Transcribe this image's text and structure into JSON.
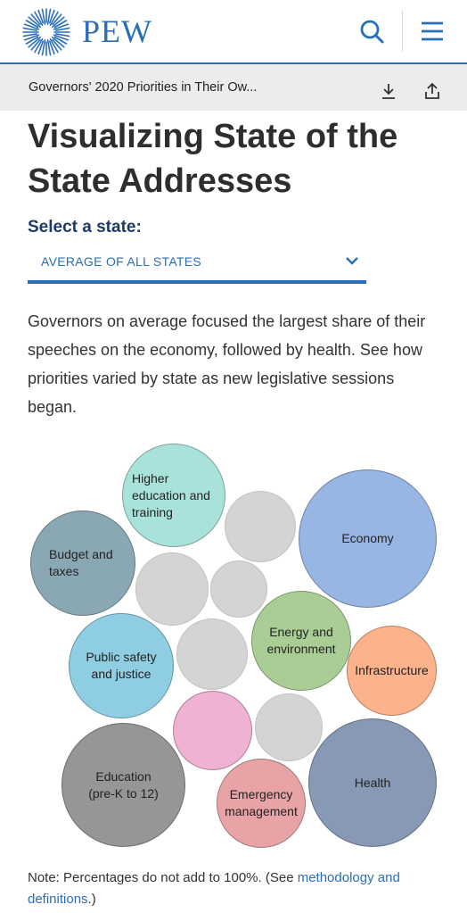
{
  "header": {
    "logo_text": "PEW",
    "logo_icon": "pew-sunburst-logo",
    "search_icon": "search-icon",
    "menu_icon": "hamburger-menu-icon"
  },
  "breadcrumb": {
    "title": "Governors' 2020 Priorities in Their Ow...",
    "download_icon": "download-icon",
    "share_icon": "share-icon"
  },
  "main": {
    "title": "Visualizing State of the State Addresses",
    "select_label": "Select a state:",
    "select_value": "AVERAGE OF ALL STATES",
    "intro": "Governors on average focused the largest share of their speeches on the economy, followed by health. See how priorities varied by state as new legislative sessions began."
  },
  "bubbles": [
    {
      "label": [
        "Higher",
        "education and",
        "training"
      ],
      "color": "#a9e2da"
    },
    {
      "label": [],
      "color": "#d4d4d4"
    },
    {
      "label": [
        "Economy"
      ],
      "color": "#97b6e3"
    },
    {
      "label": [
        "Budget and",
        "taxes"
      ],
      "color": "#8aa8b3"
    },
    {
      "label": [],
      "color": "#d4d4d4"
    },
    {
      "label": [],
      "color": "#d4d4d4"
    },
    {
      "label": [
        "Energy and",
        "environment"
      ],
      "color": "#a9cd95"
    },
    {
      "label": [
        "Public safety",
        "and justice"
      ],
      "color": "#8fcde3"
    },
    {
      "label": [],
      "color": "#d4d4d4"
    },
    {
      "label": [
        "Infrastructure"
      ],
      "color": "#fcb28a"
    },
    {
      "label": [],
      "color": "#f0b2d2"
    },
    {
      "label": [],
      "color": "#d4d4d4"
    },
    {
      "label": [
        "Education",
        "(pre-K to 12)"
      ],
      "color": "#969696"
    },
    {
      "label": [
        "Emergency",
        "management"
      ],
      "color": "#e8a3a6"
    },
    {
      "label": [
        "Health"
      ],
      "color": "#8799b4"
    }
  ],
  "note": {
    "prefix": "Note: Percentages do not add to 100%. (See ",
    "link": "methodology and definitions",
    "suffix": ".)"
  }
}
